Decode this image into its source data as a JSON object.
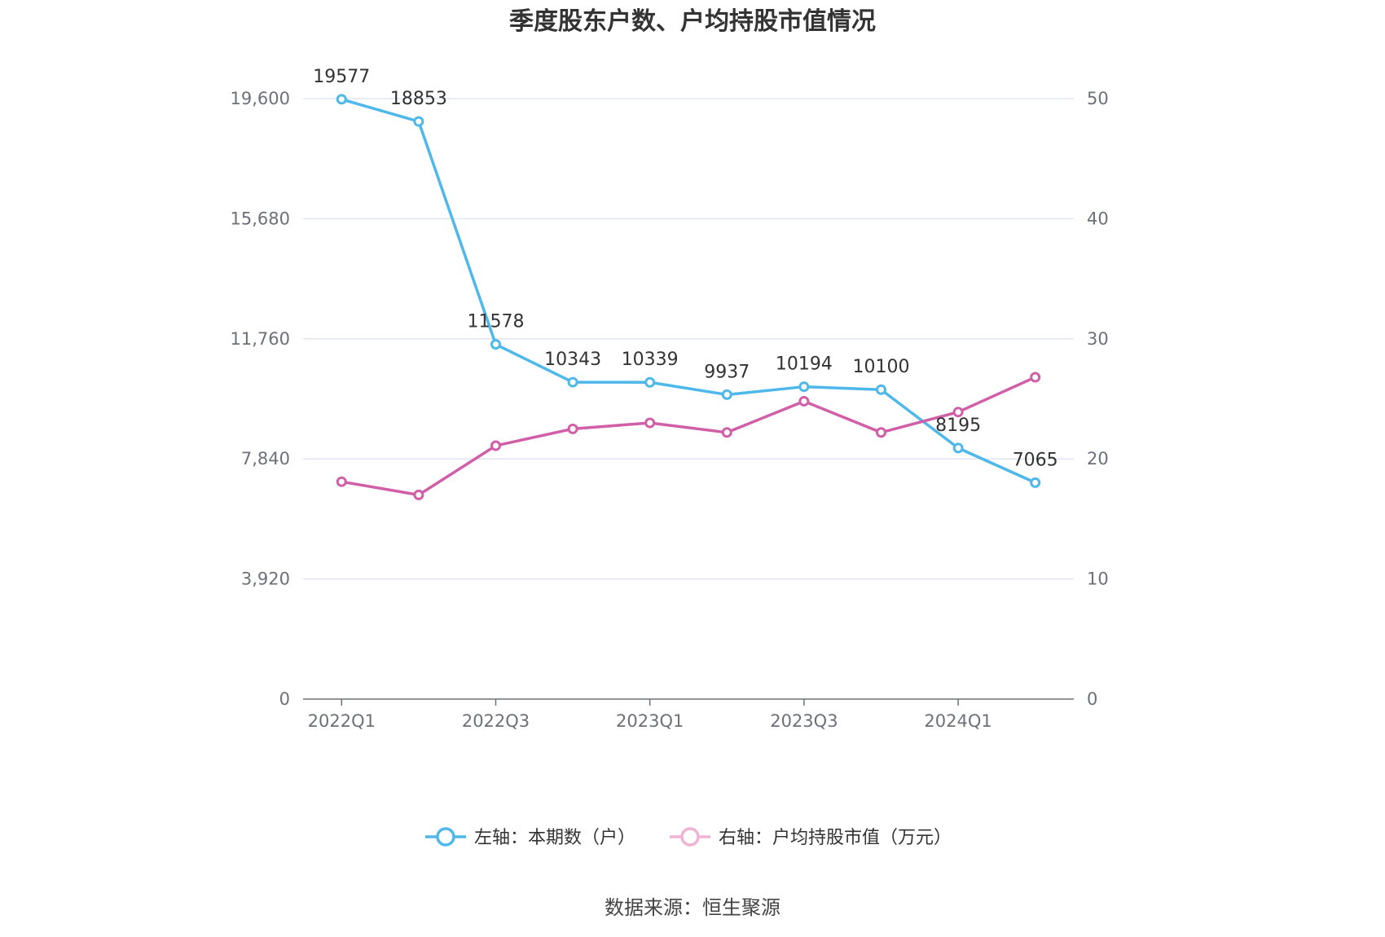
{
  "chart_data": {
    "type": "line",
    "title": "季度股东户数、户均持股市值情况",
    "categories": [
      "2022Q1",
      "2022Q2",
      "2022Q3",
      "2022Q4",
      "2023Q1",
      "2023Q2",
      "2023Q3",
      "2023Q4",
      "2024Q1",
      "2024Q2"
    ],
    "x_tick_labels": [
      "2022Q1",
      "",
      "2022Q3",
      "",
      "2023Q1",
      "",
      "2023Q3",
      "",
      "2024Q1",
      ""
    ],
    "left_axis": {
      "ylim": [
        0,
        19600
      ],
      "ticks": [
        0,
        3920,
        7840,
        11760,
        15680,
        19600
      ],
      "tick_labels": [
        "0",
        "3,920",
        "7,840",
        "11,760",
        "15,680",
        "19,600"
      ]
    },
    "right_axis": {
      "ylim": [
        0,
        50
      ],
      "ticks": [
        0,
        10,
        20,
        30,
        40,
        50
      ],
      "tick_labels": [
        "0",
        "10",
        "20",
        "30",
        "40",
        "50"
      ]
    },
    "series": [
      {
        "name": "左轴：本期数（户）",
        "axis": "left",
        "color": "#4fb8ea",
        "values": [
          19577,
          18853,
          11578,
          10343,
          10339,
          9937,
          10194,
          10100,
          8195,
          7065
        ],
        "data_labels": [
          "19577",
          "18853",
          "11578",
          "10343",
          "10339",
          "9937",
          "10194",
          "10100",
          "8195",
          "7065"
        ]
      },
      {
        "name": "右轴：户均持股市值（万元）",
        "axis": "right",
        "color": "#d15fa8",
        "legend_color": "#f0b3d4",
        "values": [
          18.1,
          17.0,
          21.1,
          22.5,
          23.0,
          22.2,
          24.8,
          22.2,
          23.9,
          26.8
        ]
      }
    ],
    "grid": true,
    "legend": "bottom",
    "source": "数据来源：恒生聚源"
  }
}
